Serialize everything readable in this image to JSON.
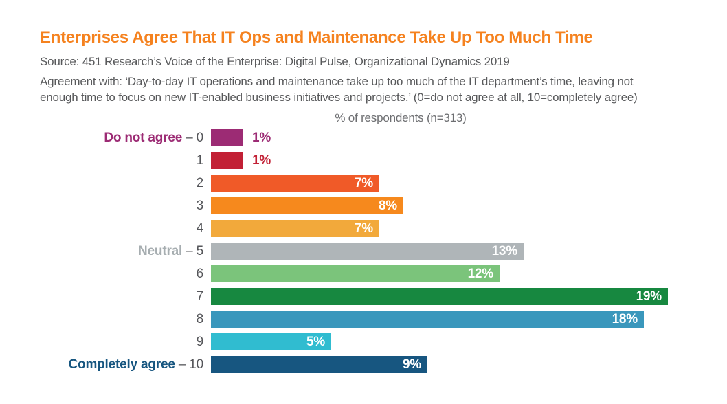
{
  "header": {
    "title": "Enterprises Agree That IT Ops and Maintenance Take Up Too Much Time",
    "source": "Source: 451 Research’s Voice of the Enterprise: Digital Pulse, Organizational Dynamics 2019",
    "description_lines": [
      "Agreement with: ‘Day-to-day IT operations and maintenance take up too much of the IT department’s time, leaving not",
      "enough time to focus on new IT-enabled business initiatives and projects.’ (0=do not agree at all, 10=completely agree)"
    ]
  },
  "chart_data": {
    "type": "bar",
    "orientation": "horizontal",
    "axis_title": "% of respondents (n=313)",
    "sample_size": 313,
    "categories": [
      "0",
      "1",
      "2",
      "3",
      "4",
      "5",
      "6",
      "7",
      "8",
      "9",
      "10"
    ],
    "category_prefixes": [
      {
        "text": "Do not agree",
        "color": "#9C2B74"
      },
      null,
      null,
      null,
      null,
      {
        "text": "Neutral",
        "color": "#A6ADB0"
      },
      null,
      null,
      null,
      null,
      {
        "text": "Completely agree",
        "color": "#175680"
      }
    ],
    "values": [
      1,
      1,
      7,
      8,
      7,
      13,
      12,
      19,
      18,
      5,
      9
    ],
    "value_labels": [
      "1%",
      "1%",
      "7%",
      "8%",
      "7%",
      "13%",
      "12%",
      "19%",
      "18%",
      "5%",
      "9%"
    ],
    "bar_colors": [
      "#9C2B74",
      "#C22035",
      "#F05A28",
      "#F6891D",
      "#F2A93B",
      "#AFB5B8",
      "#7BC47B",
      "#178840",
      "#3A97BC",
      "#30BCD0",
      "#175680"
    ],
    "xlim": [
      0,
      19.7
    ],
    "grid": false,
    "legend": false
  },
  "colors": {
    "title_orange": "#F5821F",
    "body_text_gray": "#58595B",
    "axis_title_gray": "#6D6E71",
    "tick_number_gray": "#55565A",
    "bar_value_text_white": "#FFFFFF"
  }
}
